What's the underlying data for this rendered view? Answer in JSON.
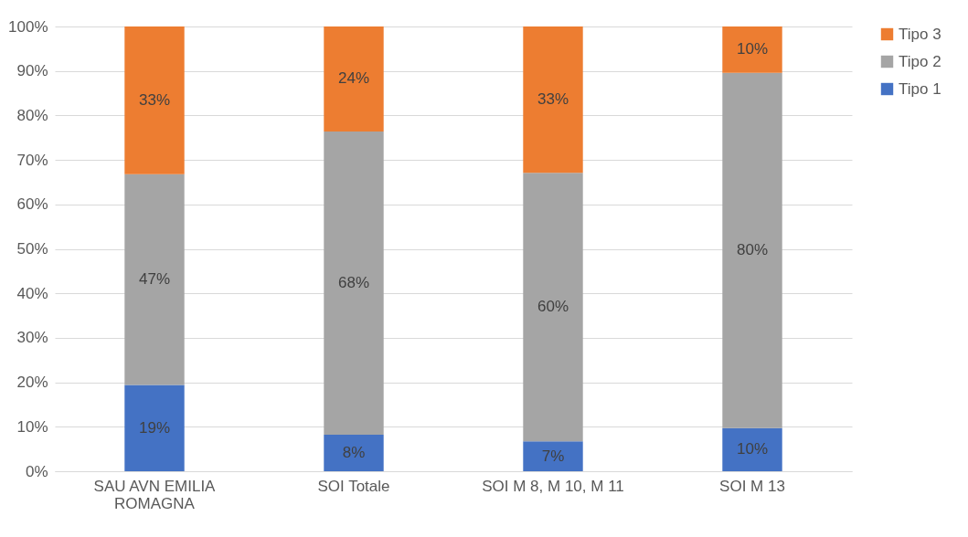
{
  "chart_data": {
    "type": "bar",
    "stacked": true,
    "categories": [
      "SAU AVN EMILIA ROMAGNA",
      "SOI Totale",
      "SOI M 8, M 10, M 11",
      "SOI M 13"
    ],
    "series": [
      {
        "name": "Tipo 1",
        "color": "#4472c4",
        "values": [
          19.4,
          8.2,
          6.7,
          9.7
        ],
        "value_labels": [
          "19%",
          "8%",
          "7%",
          "10%"
        ]
      },
      {
        "name": "Tipo 2",
        "color": "#a5a5a5",
        "values": [
          47.4,
          68.2,
          60.4,
          79.9
        ],
        "value_labels": [
          "47%",
          "68%",
          "60%",
          "80%"
        ]
      },
      {
        "name": "Tipo 3",
        "color": "#ed7d31",
        "values": [
          33.2,
          23.6,
          32.9,
          10.4
        ],
        "value_labels": [
          "33%",
          "24%",
          "33%",
          "10%"
        ]
      }
    ],
    "ylim": [
      0,
      100
    ],
    "yticks": [
      {
        "value": 0,
        "label": "0%"
      },
      {
        "value": 10,
        "label": "10%"
      },
      {
        "value": 20,
        "label": "20%"
      },
      {
        "value": 30,
        "label": "30%"
      },
      {
        "value": 40,
        "label": "40%"
      },
      {
        "value": 50,
        "label": "50%"
      },
      {
        "value": 60,
        "label": "60%"
      },
      {
        "value": 70,
        "label": "70%"
      },
      {
        "value": 80,
        "label": "80%"
      },
      {
        "value": 90,
        "label": "90%"
      },
      {
        "value": 100,
        "label": "100%"
      }
    ],
    "grid": "y",
    "legend": "right"
  }
}
